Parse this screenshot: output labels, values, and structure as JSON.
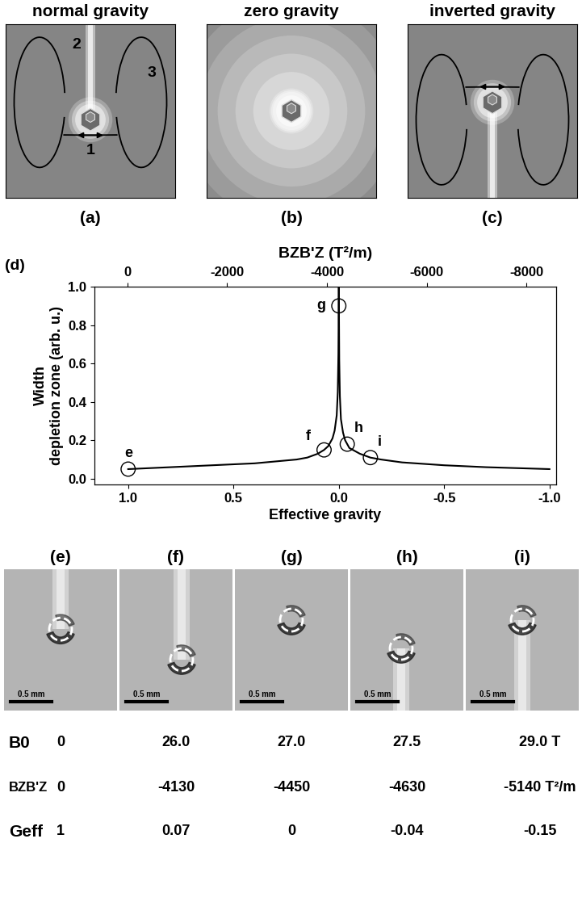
{
  "panels_top": [
    {
      "title": "normal gravity",
      "label": "(a)",
      "markers": [
        "1",
        "2",
        "3"
      ]
    },
    {
      "title": "zero gravity",
      "label": "(b)"
    },
    {
      "title": "inverted gravity",
      "label": "(c)"
    }
  ],
  "chart_data": {
    "type": "line",
    "label": "(d)",
    "x_label": "Effective gravity",
    "x2_label": "BZB'Z (T²/m)",
    "y_label": "Width\ndepletion zone (arb. u.)",
    "x": [
      1.0,
      0.8,
      0.6,
      0.4,
      0.3,
      0.2,
      0.15,
      0.1,
      0.07,
      0.05,
      0.03,
      0.02,
      0.01,
      0.005,
      0.002,
      0.0,
      -0.002,
      -0.005,
      -0.01,
      -0.02,
      -0.03,
      -0.05,
      -0.1,
      -0.15,
      -0.2,
      -0.3,
      -0.5,
      -0.7,
      -1.0
    ],
    "values": [
      0.05,
      0.06,
      0.07,
      0.08,
      0.09,
      0.1,
      0.11,
      0.13,
      0.15,
      0.17,
      0.21,
      0.25,
      0.33,
      0.45,
      0.65,
      1.0,
      0.62,
      0.43,
      0.31,
      0.24,
      0.2,
      0.16,
      0.13,
      0.11,
      0.1,
      0.085,
      0.07,
      0.06,
      0.05
    ],
    "color": "#000000",
    "xlim": [
      1.16,
      -1.03
    ],
    "xticks": [
      1.0,
      0.5,
      0.0,
      -0.5,
      -1.0
    ],
    "x2lim": [
      660,
      -8585
    ],
    "x2ticks": [
      0,
      -2000,
      -4000,
      -6000,
      -8000
    ],
    "ylim": [
      -0.03,
      1.0
    ],
    "yticks": [
      0.0,
      0.2,
      0.4,
      0.6,
      0.8,
      1.0
    ],
    "points": {
      "labels": [
        "e",
        "f",
        "g",
        "h",
        "i"
      ],
      "x": [
        1.0,
        0.07,
        0.0,
        -0.04,
        -0.15
      ],
      "y": [
        0.05,
        0.15,
        0.9,
        0.18,
        0.11
      ],
      "marker": "o"
    }
  },
  "images": [
    {
      "label": "(e)",
      "scale_bar": "0.5 mm"
    },
    {
      "label": "(f)",
      "scale_bar": "0.5 mm"
    },
    {
      "label": "(g)",
      "scale_bar": "0.5 mm"
    },
    {
      "label": "(h)",
      "scale_bar": "0.5 mm"
    },
    {
      "label": "(i)",
      "scale_bar": "0.5 mm"
    }
  ],
  "table": {
    "rows": [
      {
        "label": "B0",
        "cells": [
          "0",
          "26.0",
          "27.0",
          "27.5",
          "29.0 T"
        ]
      },
      {
        "label": "BZB'Z",
        "cells": [
          "0",
          "-4130",
          "-4450",
          "-4630",
          "-5140 T²/m"
        ]
      },
      {
        "label": "Geff",
        "cells": [
          "1",
          "0.07",
          "0",
          "-0.04",
          "-0.15"
        ]
      }
    ]
  }
}
